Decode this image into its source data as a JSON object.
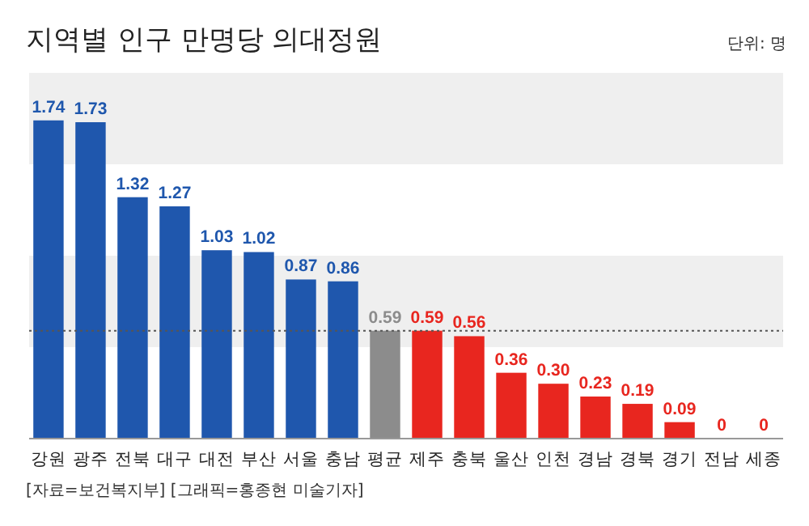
{
  "chart_data": {
    "type": "bar",
    "title": "지역별 인구 만명당 의대정원",
    "categories": [
      "강원",
      "광주",
      "전북",
      "대구",
      "대전",
      "부산",
      "서울",
      "충남",
      "평균",
      "제주",
      "충북",
      "울산",
      "인천",
      "경남",
      "경북",
      "경기",
      "전남",
      "세종"
    ],
    "values": [
      1.74,
      1.73,
      1.32,
      1.27,
      1.03,
      1.02,
      0.87,
      0.86,
      0.59,
      0.59,
      0.56,
      0.36,
      0.3,
      0.23,
      0.19,
      0.09,
      0,
      0
    ],
    "value_labels": [
      "1.74",
      "1.73",
      "1.32",
      "1.27",
      "1.03",
      "1.02",
      "0.87",
      "0.86",
      "0.59",
      "0.59",
      "0.56",
      "0.36",
      "0.30",
      "0.23",
      "0.19",
      "0.09",
      "0",
      "0"
    ],
    "colors": [
      "#1f57ad",
      "#1f57ad",
      "#1f57ad",
      "#1f57ad",
      "#1f57ad",
      "#1f57ad",
      "#1f57ad",
      "#1f57ad",
      "#8c8c8c",
      "#e8261f",
      "#e8261f",
      "#e8261f",
      "#e8261f",
      "#e8261f",
      "#e8261f",
      "#e8261f",
      "#e8261f",
      "#e8261f"
    ],
    "ylim": [
      0,
      2
    ],
    "relative": false,
    "tick_labels": "x",
    "bands": [
      {
        "axis": "y",
        "from": 1.5,
        "to": 2,
        "color": "#efefef"
      },
      {
        "axis": "y",
        "from": 0.5,
        "to": 1,
        "color": "#efefef"
      }
    ],
    "ref_lines": [
      {
        "axis": "y",
        "value": 0.59,
        "line_style": "dotted",
        "color": "#555555"
      }
    ],
    "annotations": [
      "단위: 명",
      "[자료=보건복지부] [그래픽=홍종현 미술기자]"
    ]
  }
}
